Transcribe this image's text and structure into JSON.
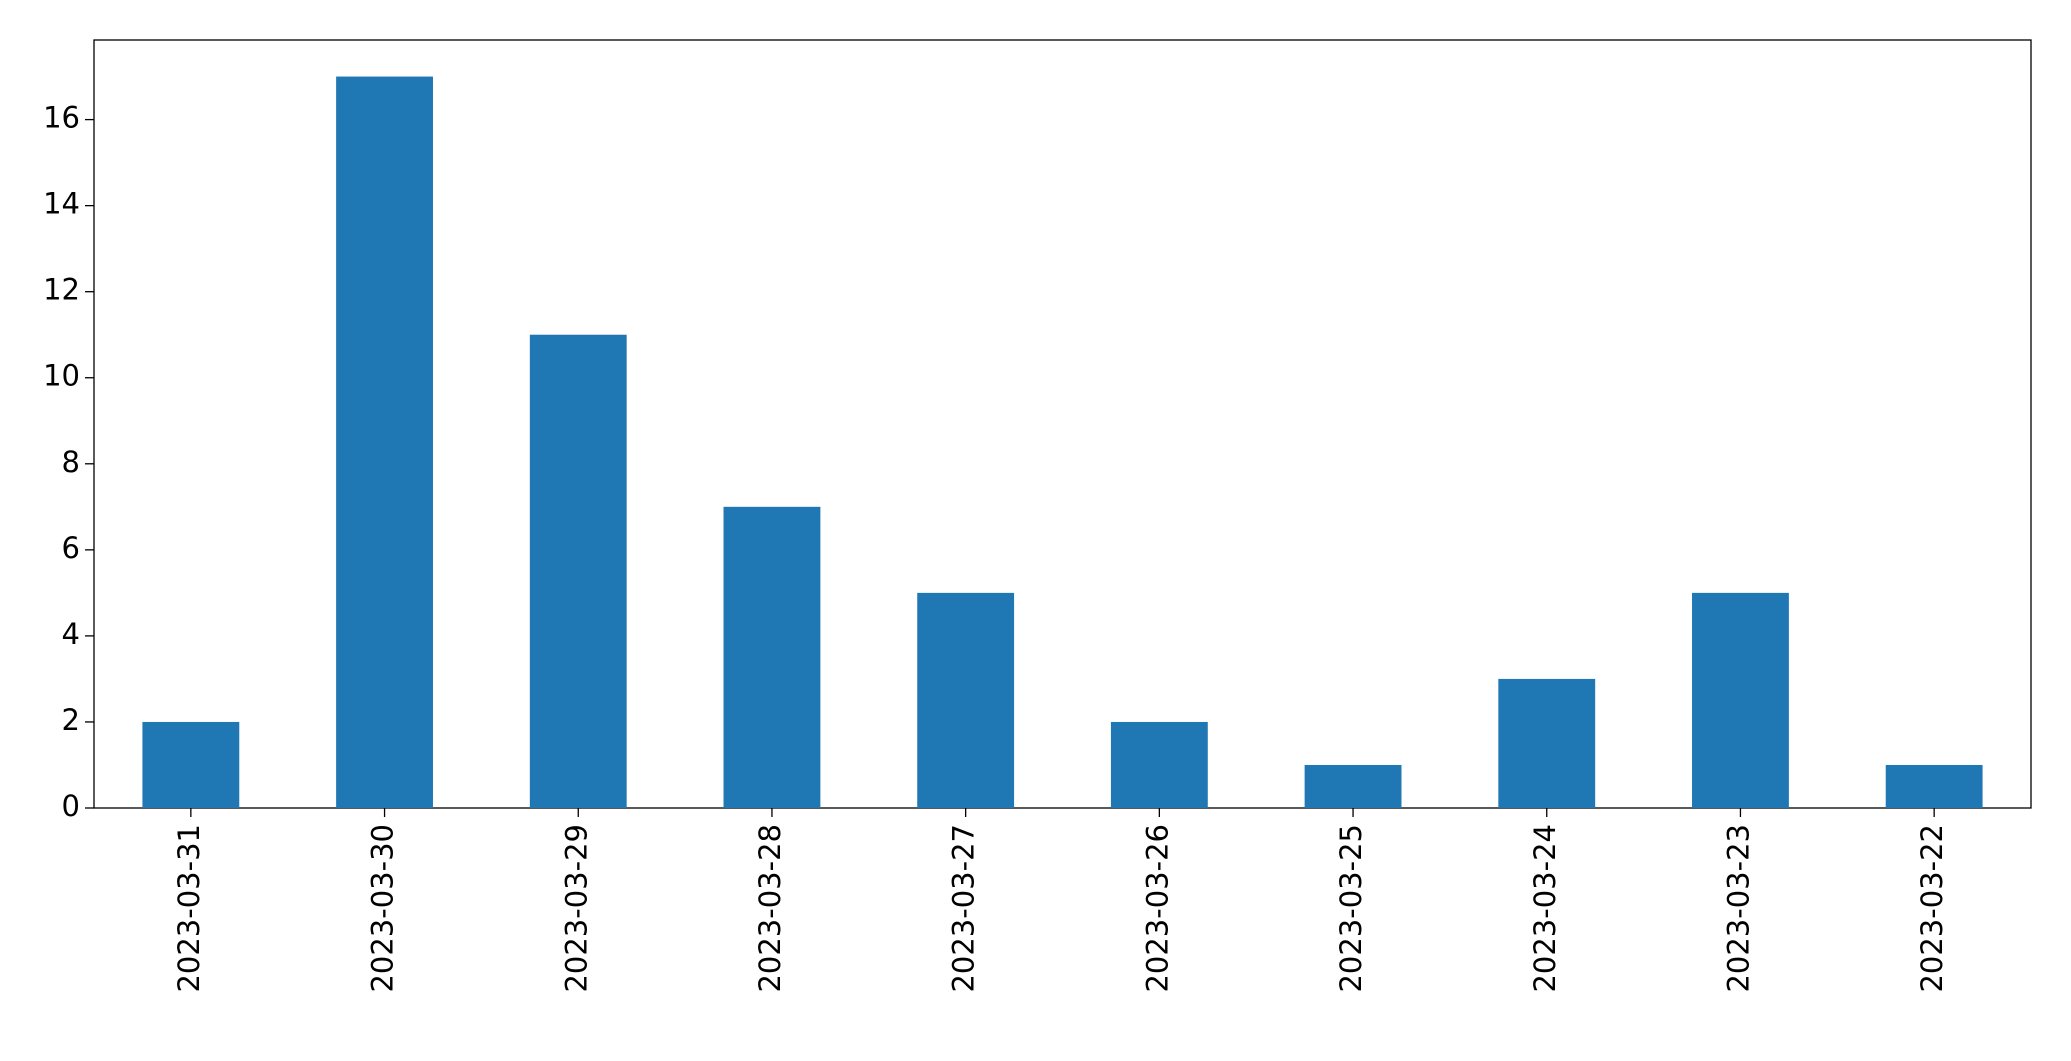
{
  "chart_data": {
    "type": "bar",
    "categories": [
      "2023-03-31",
      "2023-03-30",
      "2023-03-29",
      "2023-03-28",
      "2023-03-27",
      "2023-03-26",
      "2023-03-25",
      "2023-03-24",
      "2023-03-23",
      "2023-03-22"
    ],
    "values": [
      2,
      17,
      11,
      7,
      5,
      2,
      1,
      3,
      5,
      1
    ],
    "color": "#1f77b4",
    "ylim": [
      0,
      17.85
    ],
    "yticks": [
      0,
      2,
      4,
      6,
      8,
      10,
      12,
      14,
      16
    ],
    "grid": false
  }
}
